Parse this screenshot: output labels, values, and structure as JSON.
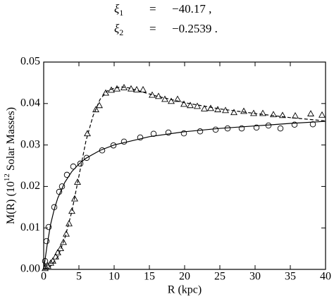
{
  "equations": [
    {
      "symbol": "ξ",
      "sub": "1",
      "eq": "=",
      "value": "−40.17 ,"
    },
    {
      "symbol": "ξ",
      "sub": "2",
      "eq": "=",
      "value": "−0.2539 ."
    }
  ],
  "chart_data": {
    "type": "scatter",
    "xlabel": "R (kpc)",
    "ylabel": [
      "M(R) (10",
      "12",
      " Solar Masses)"
    ],
    "xlim": [
      0,
      40
    ],
    "ylim": [
      0,
      0.05
    ],
    "xticks": [
      0,
      5,
      10,
      15,
      20,
      25,
      30,
      35,
      40
    ],
    "yticks": [
      {
        "value": 0,
        "label": "0.00"
      },
      0.01,
      0.02,
      0.03,
      0.04,
      0.05
    ],
    "series": [
      {
        "type": "scatter",
        "marker": "circle",
        "color": "#000000",
        "x": [
          0.2,
          0.4,
          0.7,
          1.5,
          2.2,
          2.6,
          3.3,
          4.2,
          5.2,
          6.1,
          8.3,
          9.9,
          11.4,
          13.7,
          15.6,
          17.7,
          19.9,
          22.2,
          24.4,
          26.1,
          28.1,
          30.2,
          31.9,
          33.6,
          35.6,
          38.2
        ],
        "values": [
          0.002,
          0.0068,
          0.0102,
          0.015,
          0.0187,
          0.02,
          0.0228,
          0.0248,
          0.0255,
          0.0269,
          0.0287,
          0.0299,
          0.0308,
          0.0318,
          0.0327,
          0.033,
          0.0328,
          0.0333,
          0.0337,
          0.034,
          0.034,
          0.0342,
          0.0347,
          0.034,
          0.0349,
          0.035
        ]
      },
      {
        "type": "scatter",
        "marker": "triangle",
        "color": "#000000",
        "x": [
          0.2,
          0.3,
          0.6,
          1.0,
          1.3,
          1.7,
          2.0,
          2.4,
          2.8,
          3.2,
          3.6,
          4.0,
          4.4,
          4.8,
          6.2,
          7.4,
          7.9,
          8.8,
          9.6,
          10.4,
          11.4,
          12.4,
          13.2,
          14.1,
          15.4,
          16.3,
          17.2,
          18.1,
          19.0,
          19.9,
          20.8,
          21.8,
          22.8,
          23.7,
          24.7,
          25.8,
          27.0,
          28.4,
          29.8,
          31.1,
          32.6,
          33.9,
          35.7,
          37.9,
          39.5
        ],
        "values": [
          0.0002,
          0.0005,
          0.0008,
          0.0015,
          0.002,
          0.003,
          0.004,
          0.005,
          0.0065,
          0.0085,
          0.011,
          0.014,
          0.017,
          0.021,
          0.0327,
          0.0385,
          0.0395,
          0.0425,
          0.0432,
          0.0435,
          0.0438,
          0.0435,
          0.0433,
          0.0433,
          0.042,
          0.0417,
          0.041,
          0.0405,
          0.041,
          0.0398,
          0.0395,
          0.0393,
          0.0387,
          0.0388,
          0.0385,
          0.0383,
          0.0378,
          0.0381,
          0.0376,
          0.0376,
          0.0373,
          0.0371,
          0.037,
          0.0375,
          0.0372
        ]
      },
      {
        "type": "line",
        "dash": false,
        "color": "#000000",
        "x": [
          0,
          0.5,
          1,
          1.5,
          2,
          3,
          4,
          5,
          6,
          8,
          10,
          15,
          20,
          25,
          30,
          35,
          40
        ],
        "values": [
          0,
          0.006,
          0.011,
          0.0145,
          0.0172,
          0.021,
          0.0236,
          0.0254,
          0.0268,
          0.0287,
          0.03,
          0.032,
          0.0332,
          0.034,
          0.0346,
          0.0352,
          0.0357
        ]
      },
      {
        "type": "line",
        "dash": true,
        "color": "#000000",
        "x": [
          0,
          1,
          2,
          3,
          4,
          5,
          6,
          7,
          8,
          9,
          10,
          11,
          12,
          14,
          16,
          18,
          20,
          25,
          30,
          35,
          40
        ],
        "values": [
          0,
          0.0008,
          0.003,
          0.0075,
          0.014,
          0.0225,
          0.031,
          0.037,
          0.041,
          0.043,
          0.0437,
          0.044,
          0.0438,
          0.0428,
          0.0418,
          0.041,
          0.0402,
          0.0387,
          0.0376,
          0.0366,
          0.0358
        ]
      }
    ]
  }
}
